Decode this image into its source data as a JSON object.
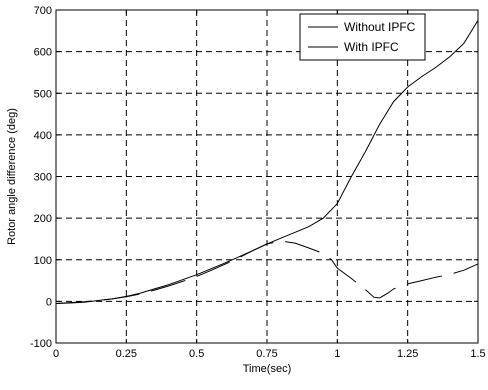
{
  "chart_data": {
    "type": "line",
    "title": "",
    "xlabel": "Time(sec)",
    "ylabel": "Rotor angle difference (deg)",
    "xlim": [
      0,
      1.5
    ],
    "ylim": [
      -100,
      700
    ],
    "xticks": [
      0,
      0.25,
      0.5,
      0.75,
      1,
      1.25,
      1.5
    ],
    "xtick_labels": [
      "0",
      "0.25",
      "0.5",
      "0.75",
      "1",
      "1.25",
      "1.5"
    ],
    "yticks": [
      -100,
      0,
      100,
      200,
      300,
      400,
      500,
      600,
      700
    ],
    "ytick_labels": [
      "-100",
      "0",
      "100",
      "200",
      "300",
      "400",
      "500",
      "600",
      "700"
    ],
    "grid": true,
    "legend_position": "top-right",
    "series": [
      {
        "name": "Without IPFC",
        "color": "#000000",
        "style": "solid",
        "x": [
          0,
          0.05,
          0.1,
          0.15,
          0.2,
          0.25,
          0.3,
          0.35,
          0.4,
          0.45,
          0.5,
          0.55,
          0.6,
          0.65,
          0.7,
          0.75,
          0.8,
          0.85,
          0.9,
          0.95,
          1.0,
          1.05,
          1.1,
          1.15,
          1.2,
          1.25,
          1.3,
          1.35,
          1.4,
          1.45,
          1.5
        ],
        "y": [
          -5,
          -4,
          -2,
          2,
          6,
          12,
          20,
          30,
          40,
          52,
          64,
          78,
          92,
          107,
          122,
          138,
          152,
          166,
          180,
          200,
          235,
          300,
          360,
          425,
          480,
          515,
          540,
          562,
          588,
          620,
          675
        ]
      },
      {
        "name": "With IPFC",
        "color": "#000000",
        "style": "dashed",
        "x": [
          0,
          0.05,
          0.1,
          0.15,
          0.2,
          0.25,
          0.3,
          0.35,
          0.4,
          0.45,
          0.5,
          0.55,
          0.6,
          0.65,
          0.7,
          0.75,
          0.8,
          0.85,
          0.9,
          0.95,
          0.98,
          1.0,
          1.05,
          1.1,
          1.13,
          1.15,
          1.18,
          1.2,
          1.25,
          1.3,
          1.35,
          1.4,
          1.45,
          1.5
        ],
        "y": [
          -5,
          -3,
          -1,
          2,
          6,
          11,
          18,
          27,
          37,
          48,
          60,
          74,
          89,
          105,
          122,
          138,
          145,
          140,
          128,
          115,
          100,
          80,
          55,
          28,
          10,
          8,
          20,
          30,
          42,
          50,
          58,
          65,
          75,
          90
        ]
      }
    ]
  }
}
